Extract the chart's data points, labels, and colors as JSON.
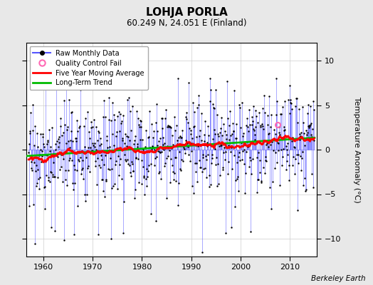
{
  "title": "LOHJA PORLA",
  "subtitle": "60.249 N, 24.051 E (Finland)",
  "ylabel": "Temperature Anomaly (°C)",
  "xlabel_credit": "Berkeley Earth",
  "ylim": [
    -12,
    12
  ],
  "xlim": [
    1956.5,
    2015.5
  ],
  "xticks": [
    1960,
    1970,
    1980,
    1990,
    2000,
    2010
  ],
  "yticks": [
    -10,
    -5,
    0,
    5,
    10
  ],
  "start_year": 1957,
  "end_year": 2014,
  "background_color": "#e8e8e8",
  "plot_bg_color": "#ffffff",
  "raw_line_color": "#5555ff",
  "raw_dot_color": "#000000",
  "moving_avg_color": "#ff0000",
  "trend_color": "#00bb00",
  "qc_fail_color": "#ff69b4",
  "grid_color": "#cccccc",
  "seed": 17
}
